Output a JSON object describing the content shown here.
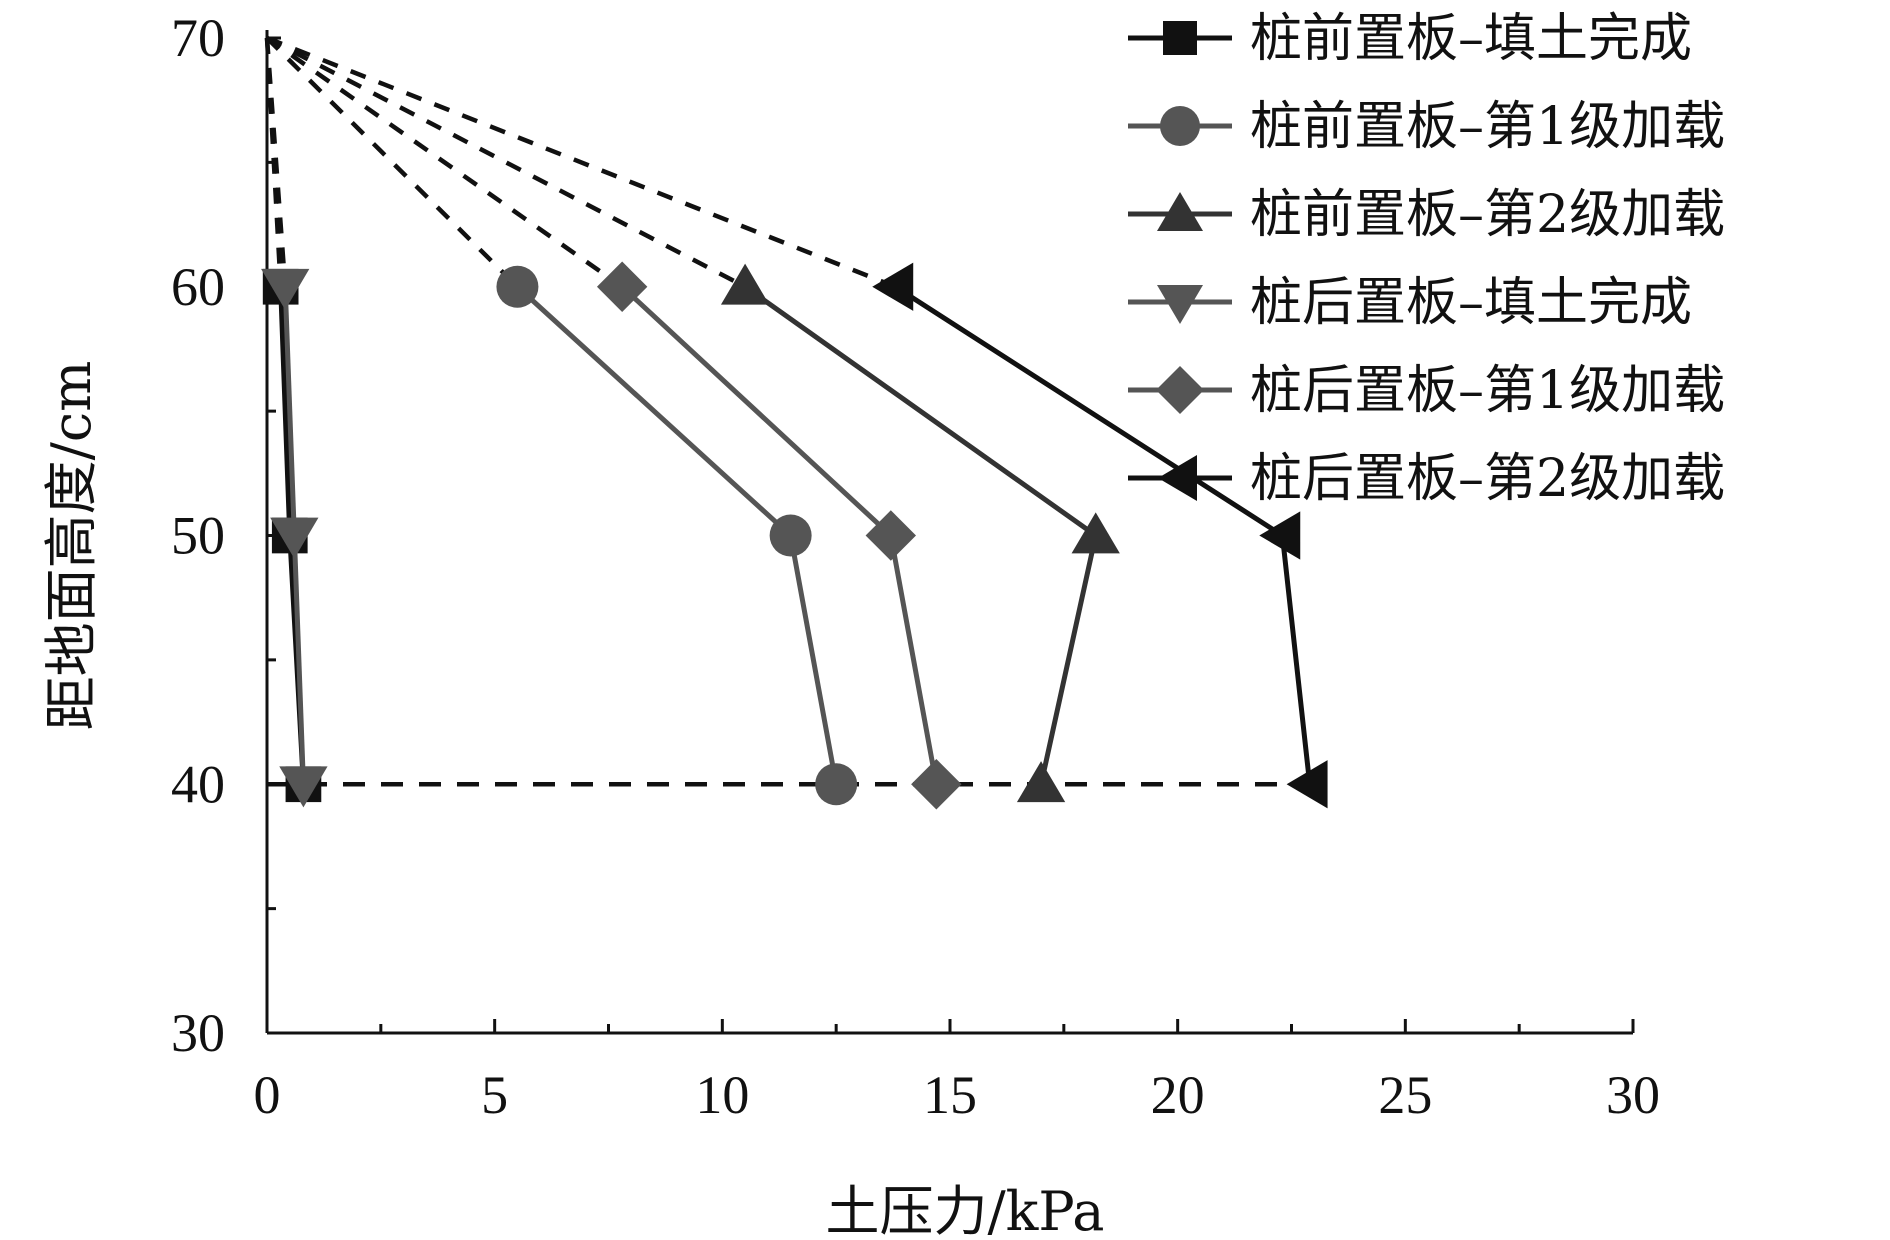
{
  "chart_data": {
    "type": "line",
    "title": "",
    "xlabel": "土压力/kPa",
    "ylabel": "距地面高度/cm",
    "xlim": [
      0,
      30
    ],
    "ylim": [
      30,
      70
    ],
    "xticks": [
      0,
      5,
      10,
      15,
      20,
      25,
      30
    ],
    "yticks": [
      30,
      40,
      50,
      60,
      70
    ],
    "grid": false,
    "legend_position": "top-right",
    "dashed_extensions": "dashed lines connect each series to (0, 70) at the top and join the 40 cm points",
    "series": [
      {
        "name": "桩前置板–填土完成",
        "marker": "square",
        "color": "#111111",
        "points": [
          {
            "x": 0.3,
            "y": 60
          },
          {
            "x": 0.5,
            "y": 50
          },
          {
            "x": 0.8,
            "y": 40
          }
        ]
      },
      {
        "name": "桩前置板–第1级加载",
        "marker": "circle",
        "color": "#555555",
        "points": [
          {
            "x": 5.5,
            "y": 60
          },
          {
            "x": 11.5,
            "y": 50
          },
          {
            "x": 12.5,
            "y": 40
          }
        ]
      },
      {
        "name": "桩前置板–第2级加载",
        "marker": "triangle-up",
        "color": "#333333",
        "points": [
          {
            "x": 10.5,
            "y": 60
          },
          {
            "x": 18.2,
            "y": 50
          },
          {
            "x": 17.0,
            "y": 40
          }
        ]
      },
      {
        "name": "桩后置板–填土完成",
        "marker": "triangle-down",
        "color": "#555555",
        "points": [
          {
            "x": 0.4,
            "y": 60
          },
          {
            "x": 0.6,
            "y": 50
          },
          {
            "x": 0.8,
            "y": 40
          }
        ]
      },
      {
        "name": "桩后置板–第1级加载",
        "marker": "diamond",
        "color": "#555555",
        "points": [
          {
            "x": 7.8,
            "y": 60
          },
          {
            "x": 13.7,
            "y": 50
          },
          {
            "x": 14.7,
            "y": 40
          }
        ]
      },
      {
        "name": "桩后置板–第2级加载",
        "marker": "triangle-left",
        "color": "#111111",
        "points": [
          {
            "x": 13.8,
            "y": 60
          },
          {
            "x": 22.3,
            "y": 50
          },
          {
            "x": 22.9,
            "y": 40
          }
        ]
      }
    ]
  }
}
